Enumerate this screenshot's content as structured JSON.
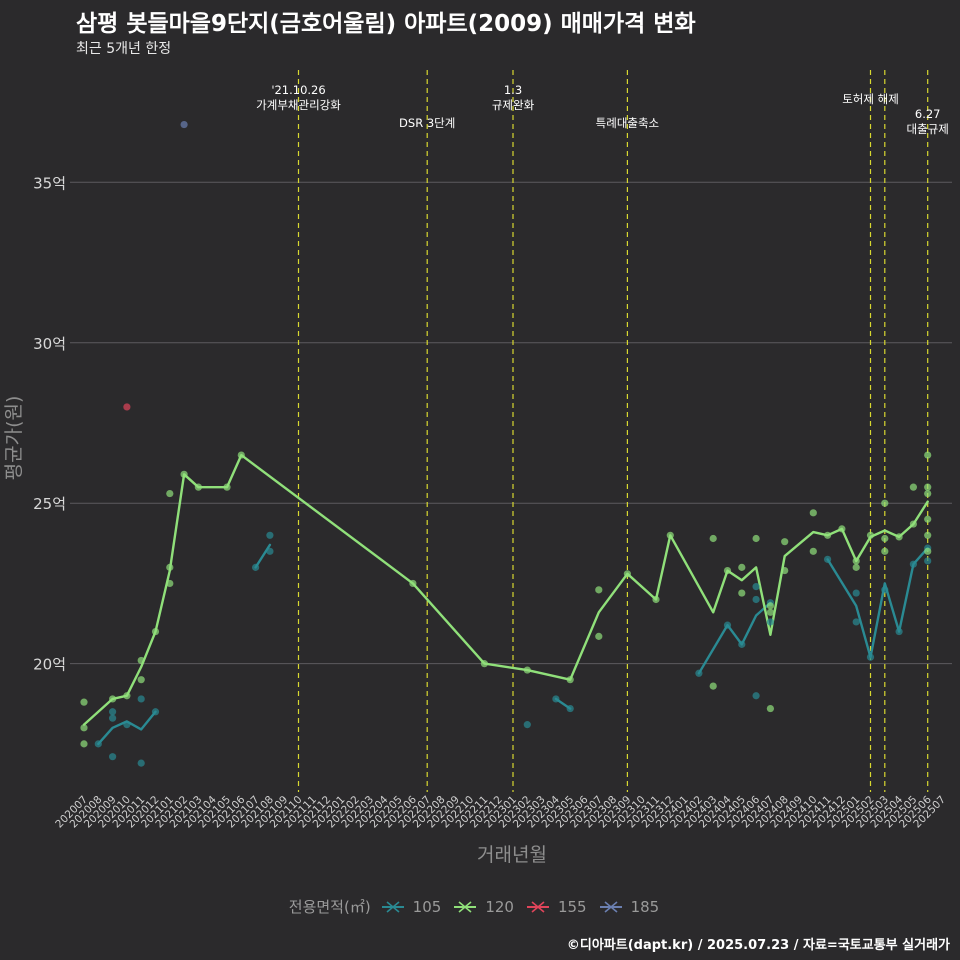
{
  "title": "삼평 봇들마을9단지(금호어울림) 아파트(2009) 매매가격 변화",
  "subtitle": "최근 5개년 한정",
  "caption": "©디아파트(dapt.kr) / 2025.07.23 / 자료=국토교통부 실거래가",
  "legend": {
    "title": "전용면적(㎡)",
    "items": [
      {
        "label": "105",
        "color": "#2a8a93"
      },
      {
        "label": "120",
        "color": "#90e07a"
      },
      {
        "label": "155",
        "color": "#e0445a"
      },
      {
        "label": "185",
        "color": "#6b7fb0"
      }
    ]
  },
  "chart_data": {
    "type": "line",
    "xlabel": "거래년월",
    "ylabel": "평균가(원)",
    "ylim": [
      16,
      38.5
    ],
    "yticks": [
      20,
      25,
      30,
      35
    ],
    "ytick_labels": [
      "20억",
      "25억",
      "30억",
      "35억"
    ],
    "grid": true,
    "legend_position": "bottom",
    "categories": [
      "202007",
      "202008",
      "202009",
      "202010",
      "202011",
      "202012",
      "202101",
      "202102",
      "202103",
      "202104",
      "202105",
      "202106",
      "202107",
      "202108",
      "202109",
      "202110",
      "202111",
      "202112",
      "202201",
      "202202",
      "202203",
      "202204",
      "202205",
      "202206",
      "202207",
      "202208",
      "202209",
      "202210",
      "202211",
      "202212",
      "202301",
      "202302",
      "202303",
      "202304",
      "202305",
      "202306",
      "202307",
      "202308",
      "202309",
      "202310",
      "202311",
      "202312",
      "202401",
      "202402",
      "202403",
      "202404",
      "202405",
      "202406",
      "202407",
      "202408",
      "202409",
      "202410",
      "202411",
      "202412",
      "202501",
      "202502",
      "202503",
      "202504",
      "202505",
      "202506",
      "202507"
    ],
    "annotations": [
      {
        "at": "202110",
        "lines": [
          "'21.10.26",
          "가계부채관리강화"
        ]
      },
      {
        "at": "202207",
        "lines": [
          "DSR 3단계"
        ]
      },
      {
        "at": "202301",
        "lines": [
          "1.3",
          "규제완화"
        ]
      },
      {
        "at": "202309",
        "lines": [
          "특례대출축소"
        ]
      },
      {
        "at": "202502",
        "lines": [
          "토허제 해제"
        ]
      },
      {
        "at": "202503",
        "lines": []
      },
      {
        "at": "202506",
        "lines": [
          "6.27",
          "대출규제"
        ]
      }
    ],
    "series": [
      {
        "name": "105",
        "color": "#2a8a93",
        "lines": [
          [
            [
              "202008",
              17.5
            ],
            [
              "202009",
              18.0
            ],
            [
              "202010",
              18.2
            ],
            [
              "202011",
              17.95
            ],
            [
              "202012",
              18.5
            ]
          ],
          [
            [
              "202107",
              23.0
            ],
            [
              "202108",
              23.7
            ]
          ],
          [
            [
              "202304",
              18.9
            ],
            [
              "202305",
              18.6
            ]
          ],
          [
            [
              "202402",
              19.7
            ],
            [
              "202404",
              21.2
            ],
            [
              "202405",
              20.6
            ],
            [
              "202406",
              21.5
            ],
            [
              "202407",
              21.9
            ]
          ],
          [
            [
              "202411",
              23.25
            ],
            [
              "202501",
              21.8
            ],
            [
              "202502",
              20.2
            ],
            [
              "202503",
              22.5
            ],
            [
              "202504",
              21.0
            ],
            [
              "202505",
              23.1
            ],
            [
              "202506",
              23.6
            ]
          ]
        ],
        "points": [
          [
            "202008",
            17.5
          ],
          [
            "202009",
            18.5
          ],
          [
            "202009",
            18.3
          ],
          [
            "202009",
            17.1
          ],
          [
            "202010",
            18.1
          ],
          [
            "202011",
            18.9
          ],
          [
            "202011",
            16.9
          ],
          [
            "202012",
            18.5
          ],
          [
            "202107",
            23.0
          ],
          [
            "202108",
            24.0
          ],
          [
            "202108",
            23.5
          ],
          [
            "202302",
            18.1
          ],
          [
            "202304",
            18.9
          ],
          [
            "202305",
            18.6
          ],
          [
            "202402",
            19.7
          ],
          [
            "202404",
            21.2
          ],
          [
            "202405",
            20.6
          ],
          [
            "202406",
            19.0
          ],
          [
            "202406",
            22.4
          ],
          [
            "202406",
            22.0
          ],
          [
            "202407",
            21.9
          ],
          [
            "202407",
            21.3
          ],
          [
            "202411",
            23.25
          ],
          [
            "202501",
            22.2
          ],
          [
            "202501",
            21.3
          ],
          [
            "202502",
            20.2
          ],
          [
            "202503",
            22.3
          ],
          [
            "202504",
            21.0
          ],
          [
            "202505",
            23.1
          ],
          [
            "202506",
            23.6
          ],
          [
            "202506",
            23.2
          ]
        ]
      },
      {
        "name": "120",
        "color": "#90e07a",
        "lines": [
          [
            [
              "202007",
              18.1
            ],
            [
              "202009",
              18.9
            ],
            [
              "202010",
              19.0
            ],
            [
              "202011",
              19.9
            ],
            [
              "202012",
              21.0
            ],
            [
              "202101",
              22.9
            ],
            [
              "202102",
              25.9
            ],
            [
              "202103",
              25.5
            ],
            [
              "202105",
              25.5
            ],
            [
              "202106",
              26.5
            ],
            [
              "202206",
              22.5
            ],
            [
              "202211",
              20.0
            ],
            [
              "202302",
              19.8
            ],
            [
              "202305",
              19.5
            ],
            [
              "202307",
              21.6
            ],
            [
              "202309",
              22.8
            ],
            [
              "202311",
              22.0
            ],
            [
              "202312",
              24.0
            ],
            [
              "202403",
              21.6
            ],
            [
              "202404",
              22.9
            ],
            [
              "202405",
              22.6
            ],
            [
              "202406",
              23.0
            ],
            [
              "202407",
              20.9
            ],
            [
              "202408",
              23.35
            ],
            [
              "202410",
              24.1
            ],
            [
              "202411",
              24.0
            ],
            [
              "202412",
              24.2
            ],
            [
              "202501",
              23.2
            ],
            [
              "202502",
              23.95
            ],
            [
              "202503",
              24.15
            ],
            [
              "202504",
              23.95
            ],
            [
              "202505",
              24.35
            ],
            [
              "202506",
              25.05
            ]
          ]
        ],
        "points": [
          [
            "202007",
            18.8
          ],
          [
            "202007",
            18.0
          ],
          [
            "202007",
            17.5
          ],
          [
            "202009",
            18.9
          ],
          [
            "202010",
            19.0
          ],
          [
            "202011",
            20.1
          ],
          [
            "202011",
            19.5
          ],
          [
            "202012",
            21.0
          ],
          [
            "202101",
            25.3
          ],
          [
            "202101",
            23.0
          ],
          [
            "202101",
            22.5
          ],
          [
            "202102",
            25.9
          ],
          [
            "202103",
            25.5
          ],
          [
            "202105",
            25.5
          ],
          [
            "202106",
            26.5
          ],
          [
            "202206",
            22.5
          ],
          [
            "202211",
            20.0
          ],
          [
            "202302",
            19.8
          ],
          [
            "202305",
            19.5
          ],
          [
            "202307",
            22.3
          ],
          [
            "202307",
            20.85
          ],
          [
            "202309",
            22.8
          ],
          [
            "202311",
            22.0
          ],
          [
            "202312",
            24.0
          ],
          [
            "202403",
            23.9
          ],
          [
            "202403",
            19.3
          ],
          [
            "202404",
            22.9
          ],
          [
            "202405",
            23.0
          ],
          [
            "202405",
            22.2
          ],
          [
            "202406",
            23.9
          ],
          [
            "202407",
            21.8
          ],
          [
            "202407",
            21.6
          ],
          [
            "202407",
            18.6
          ],
          [
            "202408",
            23.8
          ],
          [
            "202408",
            22.9
          ],
          [
            "202410",
            24.7
          ],
          [
            "202410",
            23.5
          ],
          [
            "202411",
            24.0
          ],
          [
            "202412",
            24.2
          ],
          [
            "202501",
            23.0
          ],
          [
            "202501",
            23.2
          ],
          [
            "202502",
            24.0
          ],
          [
            "202503",
            25.0
          ],
          [
            "202503",
            23.5
          ],
          [
            "202503",
            23.9
          ],
          [
            "202504",
            23.95
          ],
          [
            "202505",
            25.5
          ],
          [
            "202505",
            24.35
          ],
          [
            "202506",
            26.5
          ],
          [
            "202506",
            25.5
          ],
          [
            "202506",
            25.3
          ],
          [
            "202506",
            24.5
          ],
          [
            "202506",
            23.5
          ],
          [
            "202506",
            24.0
          ]
        ]
      },
      {
        "name": "155",
        "color": "#e0445a",
        "lines": [],
        "points": [
          [
            "202010",
            28.0
          ]
        ]
      },
      {
        "name": "185",
        "color": "#6b7fb0",
        "lines": [],
        "points": [
          [
            "202102",
            36.8
          ]
        ]
      }
    ]
  }
}
